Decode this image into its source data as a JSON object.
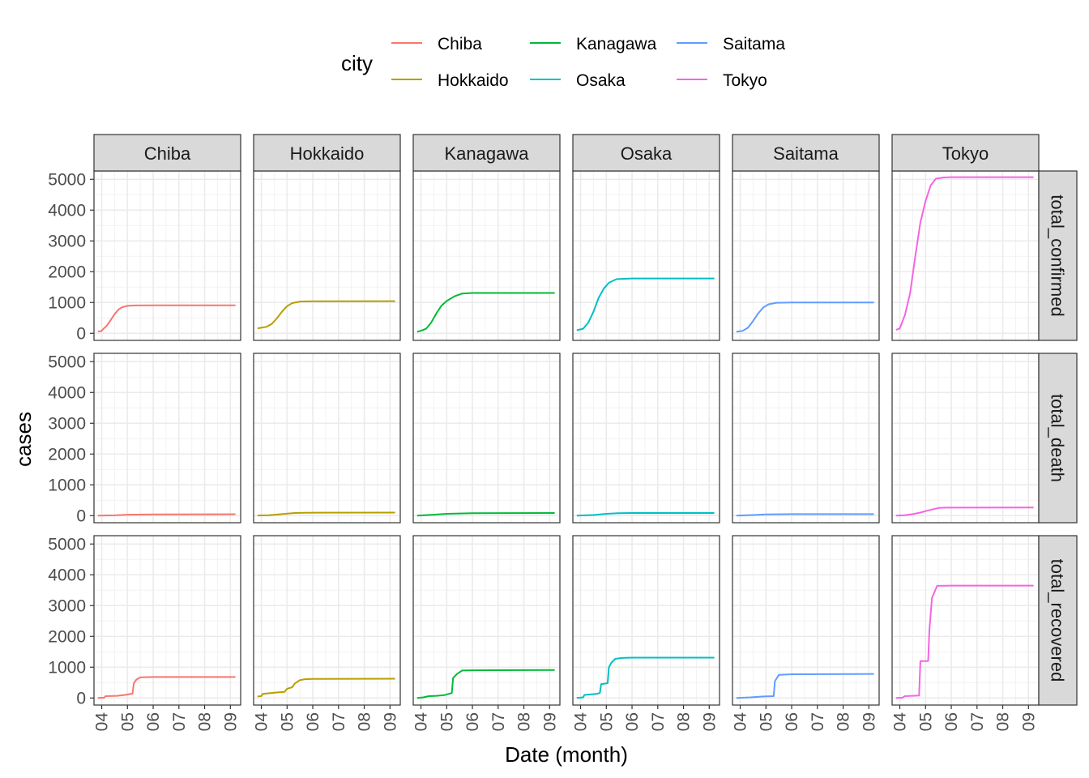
{
  "chart_data": {
    "type": "line",
    "facets": {
      "columns": "city",
      "rows": "metric"
    },
    "xlabel": "Date (month)",
    "ylabel": "cases",
    "legend": {
      "title": "city",
      "placement": "top"
    },
    "x_tick_labels": [
      "04",
      "05",
      "06",
      "07",
      "08",
      "09"
    ],
    "x_tick_months": [
      4,
      5,
      6,
      7,
      8,
      9
    ],
    "xlim": [
      3.7,
      9.4
    ],
    "y_ticks": [
      0,
      1000,
      2000,
      3000,
      4000,
      5000
    ],
    "y_tick_labels": [
      "0",
      "1000",
      "2000",
      "3000",
      "4000",
      "5000"
    ],
    "ylim": [
      -230,
      5270
    ],
    "grid": true,
    "columns": [
      "Chiba",
      "Hokkaido",
      "Kanagawa",
      "Osaka",
      "Saitama",
      "Tokyo"
    ],
    "rows": [
      "total_confirmed",
      "total_death",
      "total_recovered"
    ],
    "colors": {
      "Chiba": "#F8766D",
      "Hokkaido": "#B79F00",
      "Kanagawa": "#00BA38",
      "Osaka": "#00BFC4",
      "Saitama": "#619CFF",
      "Tokyo": "#F564E3"
    },
    "series": [
      {
        "city": "Chiba",
        "metric": "total_confirmed",
        "points": [
          [
            3.85,
            60
          ],
          [
            3.98,
            70
          ],
          [
            4.05,
            130
          ],
          [
            4.2,
            250
          ],
          [
            4.35,
            430
          ],
          [
            4.5,
            620
          ],
          [
            4.65,
            770
          ],
          [
            4.8,
            850
          ],
          [
            5.0,
            890
          ],
          [
            5.3,
            905
          ],
          [
            6.0,
            910
          ],
          [
            7.0,
            910
          ],
          [
            8.0,
            910
          ],
          [
            9.2,
            910
          ]
        ]
      },
      {
        "city": "Chiba",
        "metric": "total_death",
        "points": [
          [
            3.85,
            0
          ],
          [
            4.5,
            10
          ],
          [
            5.0,
            30
          ],
          [
            6.0,
            40
          ],
          [
            9.2,
            45
          ]
        ]
      },
      {
        "city": "Chiba",
        "metric": "total_recovered",
        "points": [
          [
            3.85,
            0
          ],
          [
            4.1,
            10
          ],
          [
            4.15,
            60
          ],
          [
            4.6,
            70
          ],
          [
            4.9,
            100
          ],
          [
            5.2,
            140
          ],
          [
            5.25,
            480
          ],
          [
            5.35,
            600
          ],
          [
            5.5,
            670
          ],
          [
            6.0,
            680
          ],
          [
            9.2,
            680
          ]
        ]
      },
      {
        "city": "Hokkaido",
        "metric": "total_confirmed",
        "points": [
          [
            3.85,
            160
          ],
          [
            4.0,
            180
          ],
          [
            4.2,
            210
          ],
          [
            4.4,
            300
          ],
          [
            4.6,
            480
          ],
          [
            4.8,
            700
          ],
          [
            5.0,
            880
          ],
          [
            5.2,
            980
          ],
          [
            5.5,
            1030
          ],
          [
            6.0,
            1040
          ],
          [
            9.2,
            1045
          ]
        ]
      },
      {
        "city": "Hokkaido",
        "metric": "total_death",
        "points": [
          [
            3.85,
            5
          ],
          [
            4.3,
            15
          ],
          [
            4.8,
            50
          ],
          [
            5.3,
            85
          ],
          [
            6.0,
            95
          ],
          [
            9.2,
            100
          ]
        ]
      },
      {
        "city": "Hokkaido",
        "metric": "total_recovered",
        "points": [
          [
            3.85,
            50
          ],
          [
            4.0,
            60
          ],
          [
            4.05,
            130
          ],
          [
            4.5,
            170
          ],
          [
            4.9,
            200
          ],
          [
            5.0,
            300
          ],
          [
            5.2,
            350
          ],
          [
            5.3,
            470
          ],
          [
            5.5,
            580
          ],
          [
            5.7,
            610
          ],
          [
            6.0,
            620
          ],
          [
            9.2,
            625
          ]
        ]
      },
      {
        "city": "Kanagawa",
        "metric": "total_confirmed",
        "points": [
          [
            3.85,
            50
          ],
          [
            4.0,
            80
          ],
          [
            4.2,
            150
          ],
          [
            4.4,
            350
          ],
          [
            4.6,
            650
          ],
          [
            4.8,
            900
          ],
          [
            5.0,
            1050
          ],
          [
            5.3,
            1200
          ],
          [
            5.6,
            1290
          ],
          [
            6.0,
            1310
          ],
          [
            9.2,
            1310
          ]
        ]
      },
      {
        "city": "Kanagawa",
        "metric": "total_death",
        "points": [
          [
            3.85,
            0
          ],
          [
            4.5,
            30
          ],
          [
            5.0,
            60
          ],
          [
            6.0,
            80
          ],
          [
            9.2,
            85
          ]
        ]
      },
      {
        "city": "Kanagawa",
        "metric": "total_recovered",
        "points": [
          [
            3.85,
            0
          ],
          [
            4.1,
            20
          ],
          [
            4.3,
            60
          ],
          [
            4.6,
            70
          ],
          [
            4.9,
            90
          ],
          [
            5.2,
            160
          ],
          [
            5.25,
            650
          ],
          [
            5.4,
            780
          ],
          [
            5.6,
            890
          ],
          [
            6.0,
            900
          ],
          [
            9.2,
            910
          ]
        ]
      },
      {
        "city": "Osaka",
        "metric": "total_confirmed",
        "points": [
          [
            3.85,
            100
          ],
          [
            4.1,
            150
          ],
          [
            4.3,
            350
          ],
          [
            4.5,
            700
          ],
          [
            4.7,
            1150
          ],
          [
            4.9,
            1450
          ],
          [
            5.1,
            1640
          ],
          [
            5.4,
            1760
          ],
          [
            6.0,
            1780
          ],
          [
            9.2,
            1780
          ]
        ]
      },
      {
        "city": "Osaka",
        "metric": "total_death",
        "points": [
          [
            3.85,
            0
          ],
          [
            4.5,
            20
          ],
          [
            5.0,
            60
          ],
          [
            5.5,
            80
          ],
          [
            6.0,
            85
          ],
          [
            9.2,
            85
          ]
        ]
      },
      {
        "city": "Osaka",
        "metric": "total_recovered",
        "points": [
          [
            3.85,
            0
          ],
          [
            4.1,
            20
          ],
          [
            4.15,
            100
          ],
          [
            4.6,
            130
          ],
          [
            4.75,
            160
          ],
          [
            4.8,
            450
          ],
          [
            5.05,
            480
          ],
          [
            5.1,
            1000
          ],
          [
            5.2,
            1150
          ],
          [
            5.35,
            1270
          ],
          [
            5.6,
            1300
          ],
          [
            6.0,
            1310
          ],
          [
            9.2,
            1310
          ]
        ]
      },
      {
        "city": "Saitama",
        "metric": "total_confirmed",
        "points": [
          [
            3.85,
            50
          ],
          [
            4.1,
            80
          ],
          [
            4.3,
            180
          ],
          [
            4.5,
            400
          ],
          [
            4.7,
            650
          ],
          [
            4.9,
            840
          ],
          [
            5.1,
            940
          ],
          [
            5.4,
            990
          ],
          [
            6.0,
            1000
          ],
          [
            9.2,
            1000
          ]
        ]
      },
      {
        "city": "Saitama",
        "metric": "total_death",
        "points": [
          [
            3.85,
            0
          ],
          [
            4.5,
            20
          ],
          [
            5.0,
            40
          ],
          [
            6.0,
            50
          ],
          [
            9.2,
            50
          ]
        ]
      },
      {
        "city": "Saitama",
        "metric": "total_recovered",
        "points": [
          [
            3.85,
            0
          ],
          [
            4.4,
            20
          ],
          [
            4.9,
            50
          ],
          [
            5.3,
            60
          ],
          [
            5.35,
            550
          ],
          [
            5.5,
            750
          ],
          [
            6.0,
            770
          ],
          [
            9.2,
            780
          ]
        ]
      },
      {
        "city": "Tokyo",
        "metric": "total_confirmed",
        "points": [
          [
            3.85,
            110
          ],
          [
            4.0,
            160
          ],
          [
            4.2,
            600
          ],
          [
            4.4,
            1300
          ],
          [
            4.6,
            2500
          ],
          [
            4.8,
            3600
          ],
          [
            5.0,
            4300
          ],
          [
            5.2,
            4800
          ],
          [
            5.4,
            5020
          ],
          [
            5.7,
            5060
          ],
          [
            6.0,
            5070
          ],
          [
            9.2,
            5070
          ]
        ]
      },
      {
        "city": "Tokyo",
        "metric": "total_death",
        "points": [
          [
            3.85,
            0
          ],
          [
            4.2,
            15
          ],
          [
            4.5,
            50
          ],
          [
            4.8,
            100
          ],
          [
            5.1,
            170
          ],
          [
            5.5,
            250
          ],
          [
            5.8,
            260
          ],
          [
            6.0,
            260
          ],
          [
            9.2,
            265
          ]
        ]
      },
      {
        "city": "Tokyo",
        "metric": "total_recovered",
        "points": [
          [
            3.85,
            0
          ],
          [
            4.1,
            10
          ],
          [
            4.2,
            60
          ],
          [
            4.75,
            80
          ],
          [
            4.8,
            1200
          ],
          [
            5.1,
            1200
          ],
          [
            5.15,
            2200
          ],
          [
            5.25,
            3250
          ],
          [
            5.35,
            3450
          ],
          [
            5.45,
            3640
          ],
          [
            6.0,
            3650
          ],
          [
            9.2,
            3650
          ]
        ]
      }
    ]
  }
}
